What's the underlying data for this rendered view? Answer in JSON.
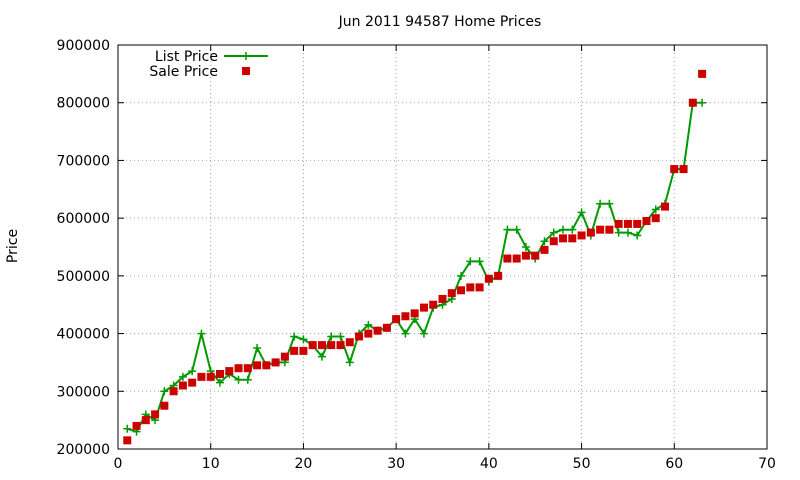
{
  "chart_data": {
    "type": "line",
    "title": "Jun 2011 94587 Home Prices",
    "xlabel": "",
    "ylabel": "Price",
    "xlim": [
      0,
      70
    ],
    "ylim": [
      200000,
      900000
    ],
    "x_ticks": [
      "0",
      "10",
      "20",
      "30",
      "40",
      "50",
      "60",
      "70"
    ],
    "y_ticks": [
      "200000",
      "300000",
      "400000",
      "500000",
      "600000",
      "700000",
      "800000",
      "900000"
    ],
    "grid": true,
    "legend_position": "top-left",
    "series": [
      {
        "name": "List Price",
        "style": "line-cross",
        "color": "#009900",
        "x": [
          1,
          2,
          3,
          4,
          5,
          6,
          7,
          8,
          9,
          10,
          11,
          12,
          13,
          14,
          15,
          16,
          17,
          18,
          19,
          20,
          21,
          22,
          23,
          24,
          25,
          26,
          27,
          28,
          29,
          30,
          31,
          32,
          33,
          34,
          35,
          36,
          37,
          38,
          39,
          40,
          41,
          42,
          43,
          44,
          45,
          46,
          47,
          48,
          49,
          50,
          51,
          52,
          53,
          54,
          55,
          56,
          57,
          58,
          59,
          60,
          61,
          62,
          63
        ],
        "y": [
          235000,
          230000,
          260000,
          250000,
          300000,
          310000,
          325000,
          335000,
          400000,
          335000,
          315000,
          330000,
          320000,
          320000,
          375000,
          345000,
          350000,
          350000,
          395000,
          390000,
          380000,
          360000,
          395000,
          395000,
          350000,
          400000,
          415000,
          405000,
          410000,
          425000,
          400000,
          425000,
          400000,
          445000,
          450000,
          460000,
          500000,
          525000,
          525000,
          490000,
          500000,
          580000,
          580000,
          550000,
          530000,
          560000,
          575000,
          580000,
          580000,
          610000,
          570000,
          625000,
          625000,
          575000,
          575000,
          570000,
          595000,
          615000,
          625000,
          685000,
          685000,
          800000,
          800000
        ]
      },
      {
        "name": "Sale Price",
        "style": "square",
        "color": "#cc0000",
        "x": [
          1,
          2,
          3,
          4,
          5,
          6,
          7,
          8,
          9,
          10,
          11,
          12,
          13,
          14,
          15,
          16,
          17,
          18,
          19,
          20,
          21,
          22,
          23,
          24,
          25,
          26,
          27,
          28,
          29,
          30,
          31,
          32,
          33,
          34,
          35,
          36,
          37,
          38,
          39,
          40,
          41,
          42,
          43,
          44,
          45,
          46,
          47,
          48,
          49,
          50,
          51,
          52,
          53,
          54,
          55,
          56,
          57,
          58,
          59,
          60,
          61,
          62,
          63
        ],
        "y": [
          215000,
          240000,
          250000,
          260000,
          275000,
          300000,
          310000,
          315000,
          325000,
          325000,
          330000,
          335000,
          340000,
          340000,
          345000,
          345000,
          350000,
          360000,
          370000,
          370000,
          380000,
          380000,
          380000,
          380000,
          385000,
          395000,
          400000,
          405000,
          410000,
          425000,
          430000,
          435000,
          445000,
          450000,
          460000,
          470000,
          475000,
          480000,
          480000,
          495000,
          500000,
          530000,
          530000,
          535000,
          535000,
          545000,
          560000,
          565000,
          565000,
          570000,
          575000,
          580000,
          580000,
          590000,
          590000,
          590000,
          595000,
          600000,
          620000,
          685000,
          685000,
          800000,
          850000
        ]
      }
    ]
  }
}
